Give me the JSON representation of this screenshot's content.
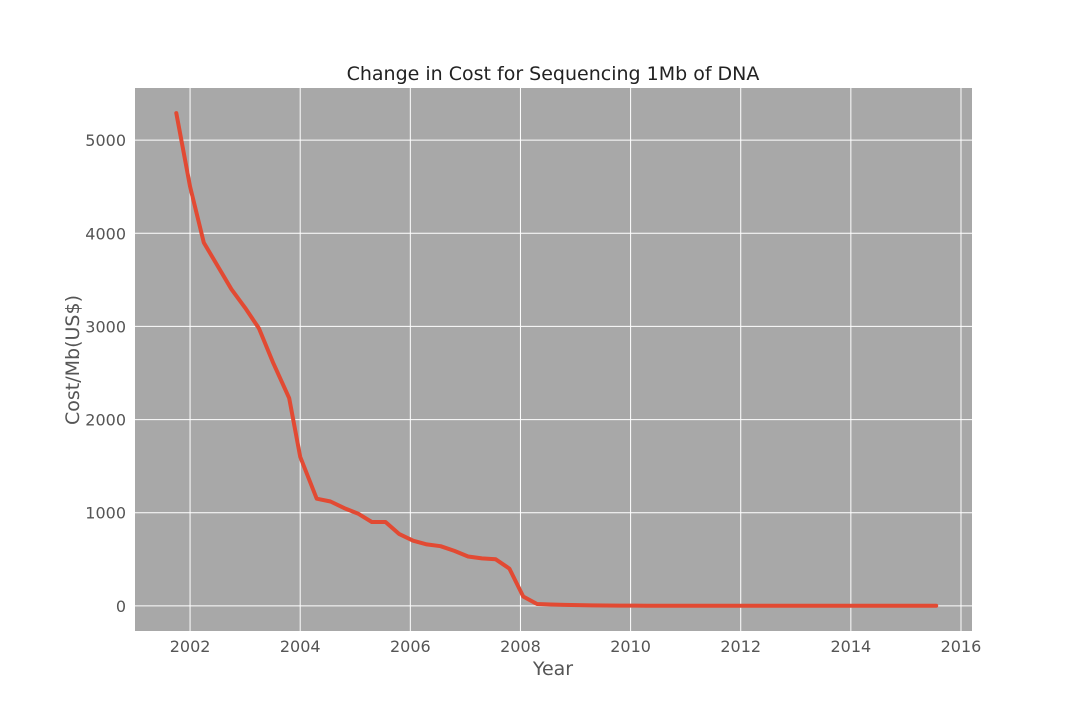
{
  "chart_data": {
    "type": "line",
    "title": "Change in Cost for Sequencing 1Mb of DNA",
    "xlabel": "Year",
    "ylabel": "Cost/Mb(US$)",
    "xlim": [
      2001.0,
      2016.2
    ],
    "ylim": [
      -270,
      5560
    ],
    "xticks": [
      2002,
      2004,
      2006,
      2008,
      2010,
      2012,
      2014,
      2016
    ],
    "yticks": [
      0,
      1000,
      2000,
      3000,
      4000,
      5000
    ],
    "grid": true,
    "legend": "none",
    "colors": {
      "plot_background": "#a8a8a8",
      "grid": "#ffffff",
      "line": "#e24a33",
      "text": "#555555",
      "title": "#222222"
    },
    "series": [
      {
        "x": [
          2001.75,
          2002.0,
          2002.25,
          2002.5,
          2002.75,
          2003.0,
          2003.25,
          2003.5,
          2003.8,
          2004.0,
          2004.3,
          2004.55,
          2004.8,
          2005.05,
          2005.3,
          2005.55,
          2005.8,
          2006.05,
          2006.3,
          2006.55,
          2006.8,
          2007.05,
          2007.3,
          2007.55,
          2007.8,
          2008.05,
          2008.3,
          2008.55,
          2008.8,
          2009.3,
          2009.8,
          2010.3,
          2011.0,
          2012.0,
          2013.0,
          2014.0,
          2015.0,
          2015.55
        ],
        "values": [
          5290,
          4500,
          3900,
          3650,
          3400,
          3200,
          2980,
          2620,
          2230,
          1600,
          1150,
          1120,
          1050,
          990,
          900,
          900,
          770,
          700,
          660,
          640,
          590,
          530,
          510,
          500,
          400,
          100,
          20,
          15,
          10,
          5,
          3,
          2,
          1,
          1,
          1,
          1,
          1,
          1
        ]
      }
    ]
  }
}
